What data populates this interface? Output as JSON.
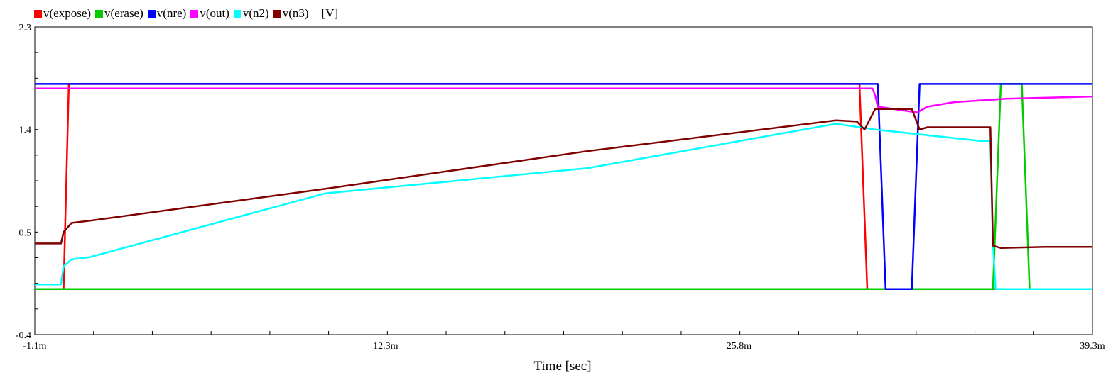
{
  "chart_data": {
    "type": "line",
    "xlabel": "Time [sec]",
    "ylabel_unit": "[V]",
    "xlim": [
      -1.1,
      39.3
    ],
    "ylim": [
      -0.4,
      2.3
    ],
    "x_ticks": [
      "-1.1m",
      "12.3m",
      "25.8m",
      "39.3m"
    ],
    "x_tick_values": [
      -1.1,
      12.3,
      25.8,
      39.3
    ],
    "y_ticks": [
      "2.3",
      "1.4",
      "0.5",
      "-0.4"
    ],
    "y_tick_values": [
      2.3,
      1.4,
      0.5,
      -0.4
    ],
    "x_units": "ms",
    "grid": false,
    "legend_position": "top-left",
    "series": [
      {
        "name": "v(expose)",
        "color": "#ff0000",
        "points": [
          [
            -1.1,
            0
          ],
          [
            0.0,
            0
          ],
          [
            0.2,
            1.8
          ],
          [
            30.4,
            1.8
          ],
          [
            30.7,
            0
          ],
          [
            39.3,
            0
          ]
        ]
      },
      {
        "name": "v(erase)",
        "color": "#00cc00",
        "points": [
          [
            -1.1,
            0
          ],
          [
            35.5,
            0
          ],
          [
            35.8,
            1.8
          ],
          [
            36.6,
            1.8
          ],
          [
            36.9,
            0
          ],
          [
            39.3,
            0
          ]
        ]
      },
      {
        "name": "v(nre)",
        "color": "#0000ff",
        "points": [
          [
            -1.1,
            1.8
          ],
          [
            31.1,
            1.8
          ],
          [
            31.4,
            0
          ],
          [
            32.4,
            0
          ],
          [
            32.7,
            1.8
          ],
          [
            39.3,
            1.8
          ]
        ]
      },
      {
        "name": "v(out)",
        "color": "#ff00ff",
        "points": [
          [
            -1.1,
            1.76
          ],
          [
            30.9,
            1.76
          ],
          [
            31.0,
            1.7
          ],
          [
            31.1,
            1.6
          ],
          [
            32.6,
            1.55
          ],
          [
            33.0,
            1.6
          ],
          [
            34.0,
            1.64
          ],
          [
            36.0,
            1.67
          ],
          [
            39.3,
            1.69
          ]
        ]
      },
      {
        "name": "v(n2)",
        "color": "#00ffff",
        "points": [
          [
            -1.1,
            0.04
          ],
          [
            -0.1,
            0.04
          ],
          [
            0.0,
            0.2
          ],
          [
            0.3,
            0.26
          ],
          [
            1.0,
            0.28
          ],
          [
            10.0,
            0.84
          ],
          [
            20.0,
            1.06
          ],
          [
            29.5,
            1.45
          ],
          [
            31.0,
            1.4
          ],
          [
            35.0,
            1.3
          ],
          [
            35.4,
            1.3
          ],
          [
            35.5,
            0.4
          ],
          [
            35.6,
            0.0
          ],
          [
            38.5,
            0.0
          ],
          [
            39.3,
            0.0
          ]
        ]
      },
      {
        "name": "v(n3)",
        "color": "#800000",
        "points": [
          [
            -1.1,
            0.4
          ],
          [
            -0.1,
            0.4
          ],
          [
            0.0,
            0.5
          ],
          [
            0.3,
            0.58
          ],
          [
            1.0,
            0.6
          ],
          [
            10.0,
            0.88
          ],
          [
            20.0,
            1.21
          ],
          [
            29.5,
            1.48
          ],
          [
            30.3,
            1.47
          ],
          [
            30.6,
            1.4
          ],
          [
            31.0,
            1.58
          ],
          [
            32.4,
            1.58
          ],
          [
            32.7,
            1.4
          ],
          [
            33.0,
            1.42
          ],
          [
            35.0,
            1.42
          ],
          [
            35.4,
            1.42
          ],
          [
            35.5,
            0.38
          ],
          [
            35.8,
            0.36
          ],
          [
            37.5,
            0.37
          ],
          [
            39.3,
            0.37
          ]
        ]
      }
    ]
  }
}
